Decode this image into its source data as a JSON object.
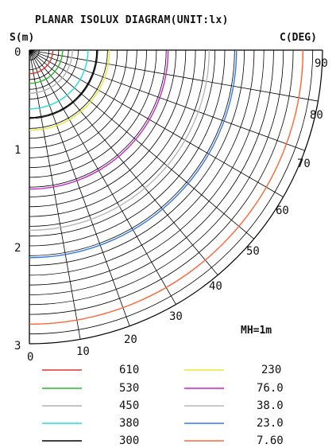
{
  "title": "PLANAR ISOLUX DIAGRAM(UNIT:lx)",
  "s_axis_label": "S(m)",
  "c_axis_label": "C(DEG)",
  "s_ticks": [
    "0",
    "1",
    "2",
    "3"
  ],
  "bottom_ticks": [
    "0",
    "10"
  ],
  "angle_ticks": [
    "20",
    "30",
    "40",
    "50",
    "60",
    "70",
    "80",
    "90"
  ],
  "mounting_height": "MH=1m",
  "colors": {
    "c610": "#e53030",
    "c530": "#22bb22",
    "c450": "#b0b0b0",
    "c380": "#22dddd",
    "c300": "#000000",
    "c230": "#e8e830",
    "c76": "#cc22cc",
    "c38": "#b8b8b8",
    "c23": "#3377ee",
    "c7_6": "#ff6633"
  },
  "legend": {
    "left": [
      {
        "value": "610",
        "color": "#e53030"
      },
      {
        "value": "530",
        "color": "#22bb22"
      },
      {
        "value": "450",
        "color": "#b0b0b0"
      },
      {
        "value": "380",
        "color": "#22dddd"
      },
      {
        "value": "300",
        "color": "#000000"
      }
    ],
    "right": [
      {
        "value": "230",
        "color": "#e8e830"
      },
      {
        "value": "76.0",
        "color": "#cc22cc"
      },
      {
        "value": "38.0",
        "color": "#b8b8b8"
      },
      {
        "value": "23.0",
        "color": "#3377ee"
      },
      {
        "value": "7.60",
        "color": "#ff6633"
      }
    ]
  },
  "chart_data": {
    "type": "polar-isolux",
    "radius_range_m": [
      0,
      3
    ],
    "angle_range_deg": [
      0,
      90
    ],
    "radial_grid_step_m": 0.1,
    "angular_grid_step_deg": 10,
    "contours": [
      {
        "lux": 610,
        "radius_m": 0.24
      },
      {
        "lux": 530,
        "radius_m": 0.34
      },
      {
        "lux": 450,
        "radius_m": 0.44
      },
      {
        "lux": 380,
        "radius_m": 0.6
      },
      {
        "lux": 300,
        "radius_m": 0.69
      },
      {
        "lux": 230,
        "radius_m": 0.82
      },
      {
        "lux": 76.0,
        "radius_m": 1.42
      },
      {
        "lux": 38.0,
        "radius_m": 1.84
      },
      {
        "lux": 23.0,
        "radius_m": 2.12
      },
      {
        "lux": 7.6,
        "radius_m": 2.8
      }
    ]
  }
}
